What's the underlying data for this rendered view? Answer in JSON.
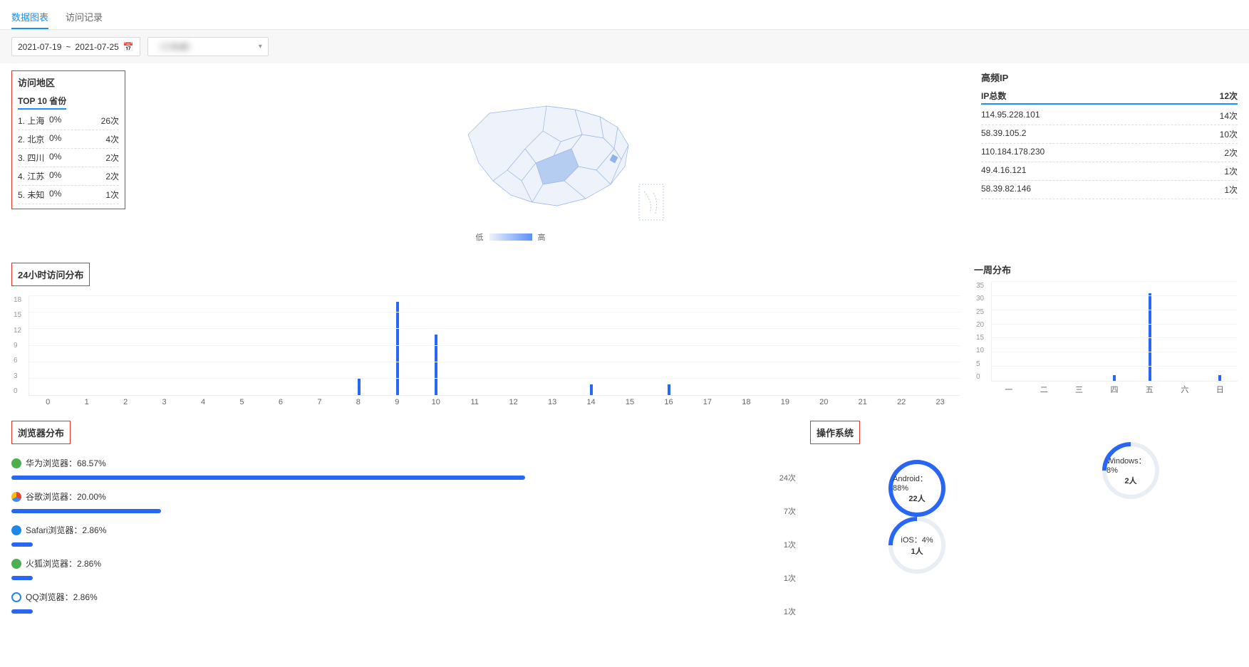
{
  "tabs": {
    "active": "数据图表",
    "other": "访问记录"
  },
  "toolbar": {
    "date_from": "2021-07-19",
    "date_to": "2021-07-25",
    "sep": "~",
    "select_hidden": "（已隐藏）"
  },
  "region": {
    "title": "访问地区",
    "subtitle": "TOP 10 省份",
    "rows": [
      {
        "idx": "1.",
        "name": "上海",
        "pct": "0%",
        "count": "26次"
      },
      {
        "idx": "2.",
        "name": "北京",
        "pct": "0%",
        "count": "4次"
      },
      {
        "idx": "3.",
        "name": "四川",
        "pct": "0%",
        "count": "2次"
      },
      {
        "idx": "4.",
        "name": "江苏",
        "pct": "0%",
        "count": "2次"
      },
      {
        "idx": "5.",
        "name": "未知",
        "pct": "0%",
        "count": "1次"
      }
    ],
    "legend_low": "低",
    "legend_high": "高"
  },
  "ip": {
    "title": "高频IP",
    "header_label": "IP总数",
    "header_count": "12次",
    "rows": [
      {
        "ip": "114.95.228.101",
        "count": "14次"
      },
      {
        "ip": "58.39.105.2",
        "count": "10次"
      },
      {
        "ip": "110.184.178.230",
        "count": "2次"
      },
      {
        "ip": "49.4.16.121",
        "count": "1次"
      },
      {
        "ip": "58.39.82.146",
        "count": "1次"
      }
    ]
  },
  "hourly": {
    "title": "24小时访问分布",
    "ymax": 18,
    "yticks": [
      "0",
      "3",
      "6",
      "9",
      "12",
      "15",
      "18"
    ],
    "bars": [
      {
        "x": "0",
        "v": 0
      },
      {
        "x": "1",
        "v": 0
      },
      {
        "x": "2",
        "v": 0
      },
      {
        "x": "3",
        "v": 0
      },
      {
        "x": "4",
        "v": 0
      },
      {
        "x": "5",
        "v": 0
      },
      {
        "x": "6",
        "v": 0
      },
      {
        "x": "7",
        "v": 0
      },
      {
        "x": "8",
        "v": 3
      },
      {
        "x": "9",
        "v": 17
      },
      {
        "x": "10",
        "v": 11
      },
      {
        "x": "11",
        "v": 0
      },
      {
        "x": "12",
        "v": 0
      },
      {
        "x": "13",
        "v": 0
      },
      {
        "x": "14",
        "v": 2
      },
      {
        "x": "15",
        "v": 0
      },
      {
        "x": "16",
        "v": 2
      },
      {
        "x": "17",
        "v": 0
      },
      {
        "x": "18",
        "v": 0
      },
      {
        "x": "19",
        "v": 0
      },
      {
        "x": "20",
        "v": 0
      },
      {
        "x": "21",
        "v": 0
      },
      {
        "x": "22",
        "v": 0
      },
      {
        "x": "23",
        "v": 0
      }
    ]
  },
  "weekly": {
    "title": "一周分布",
    "ymax": 35,
    "yticks": [
      "0",
      "5",
      "10",
      "15",
      "20",
      "25",
      "30",
      "35"
    ],
    "bars": [
      {
        "x": "一",
        "v": 0
      },
      {
        "x": "二",
        "v": 0
      },
      {
        "x": "三",
        "v": 0
      },
      {
        "x": "四",
        "v": 2
      },
      {
        "x": "五",
        "v": 31
      },
      {
        "x": "六",
        "v": 0
      },
      {
        "x": "日",
        "v": 2
      }
    ]
  },
  "browsers": {
    "title": "浏览器分布",
    "max": 24,
    "items": [
      {
        "icon": "ic-huawei",
        "label": "华为浏览器：68.57%",
        "count": "24次",
        "bar_pct": 68.57
      },
      {
        "icon": "ic-chrome",
        "label": "谷歌浏览器：20.00%",
        "count": "7次",
        "bar_pct": 20.0
      },
      {
        "icon": "ic-safari",
        "label": "Safari浏览器：2.86%",
        "count": "1次",
        "bar_pct": 2.86
      },
      {
        "icon": "ic-firefox",
        "label": "火狐浏览器：2.86%",
        "count": "1次",
        "bar_pct": 2.86
      },
      {
        "icon": "ic-qq",
        "label": "QQ浏览器：2.86%",
        "count": "1次",
        "bar_pct": 2.86
      }
    ]
  },
  "os": {
    "title": "操作系统",
    "left": [
      {
        "name": "Android：",
        "pct": "88%",
        "sub": "22人",
        "style": "big"
      },
      {
        "name": "iOS：",
        "pct": "4%",
        "sub": "1人",
        "style": "small"
      }
    ],
    "right": [
      {
        "name": "Windows：",
        "pct": "8%",
        "sub": "2人",
        "style": "small"
      }
    ]
  },
  "colors": {
    "primary": "#2867f5",
    "accent": "#1890ff",
    "red": "#e63228"
  }
}
